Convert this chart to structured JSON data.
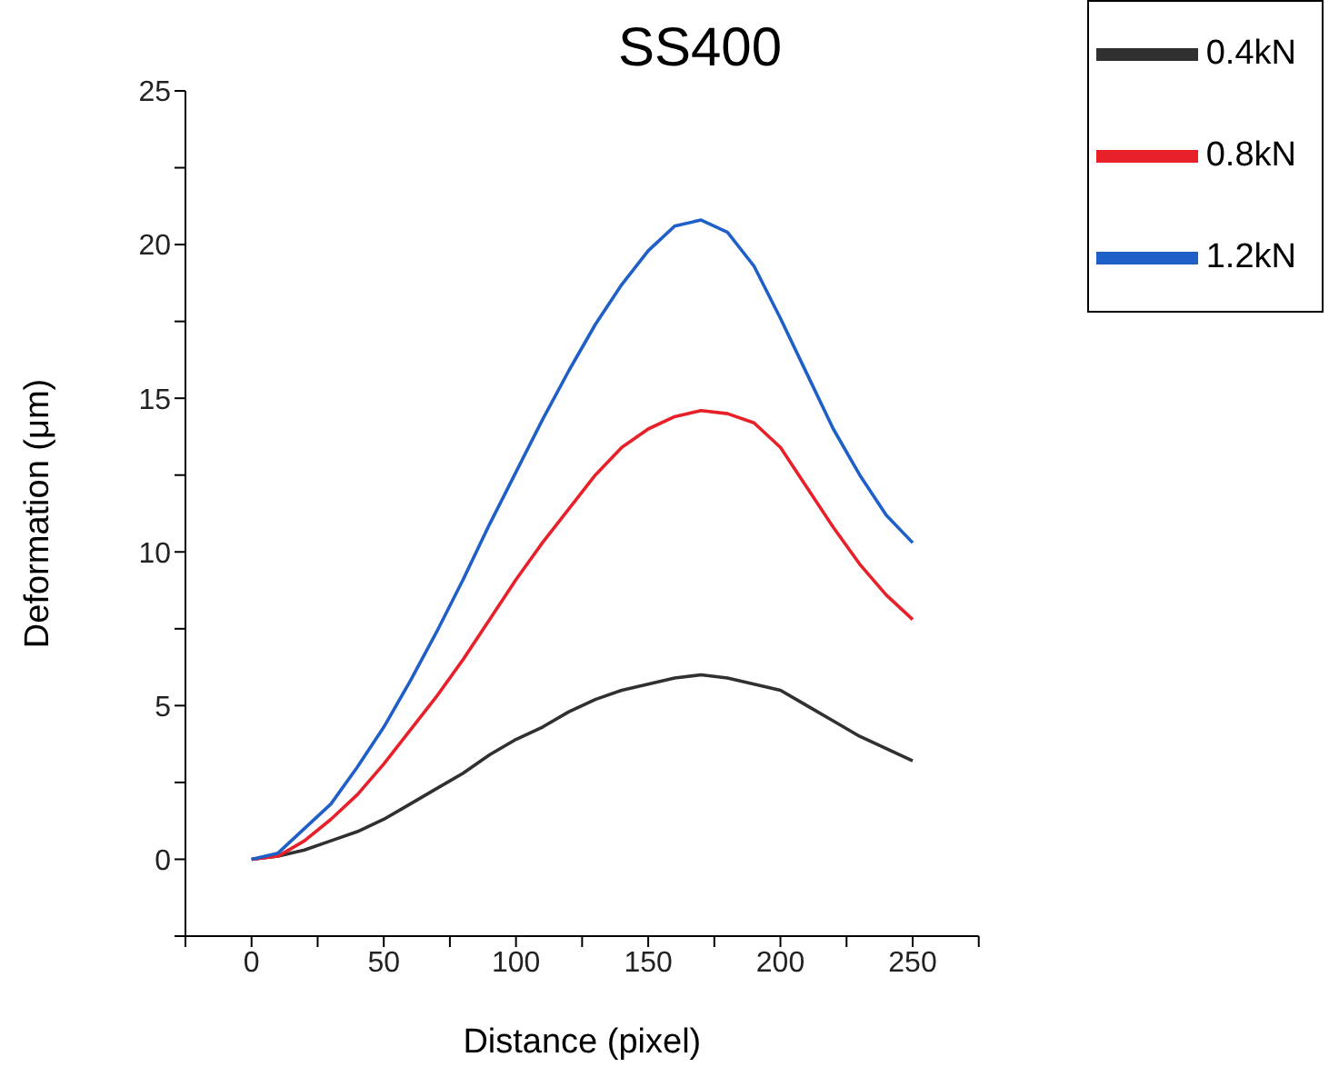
{
  "chart_data": {
    "type": "line",
    "title": "SS400",
    "xlabel": "Distance (pixel)",
    "ylabel": "Deformation (μm)",
    "x": [
      0,
      10,
      20,
      30,
      40,
      50,
      60,
      70,
      80,
      90,
      100,
      110,
      120,
      130,
      140,
      150,
      160,
      170,
      180,
      190,
      200,
      210,
      220,
      230,
      240,
      250
    ],
    "series": [
      {
        "name": "0.4kN",
        "color": "#303030",
        "values": [
          0,
          0.1,
          0.3,
          0.6,
          0.9,
          1.3,
          1.8,
          2.3,
          2.8,
          3.4,
          3.9,
          4.3,
          4.8,
          5.2,
          5.5,
          5.7,
          5.9,
          6,
          5.9,
          5.7,
          5.5,
          5.0,
          4.5,
          4.0,
          3.6,
          3.2
        ]
      },
      {
        "name": "0.8kN",
        "color": "#e8202a",
        "values": [
          0,
          0.1,
          0.6,
          1.3,
          2.1,
          3.1,
          4.2,
          5.3,
          6.5,
          7.8,
          9.1,
          10.3,
          11.4,
          12.5,
          13.4,
          14,
          14.4,
          14.6,
          14.5,
          14.2,
          13.4,
          12.1,
          10.8,
          9.6,
          8.6,
          7.8
        ]
      },
      {
        "name": "1.2kN",
        "color": "#1f5fc8",
        "values": [
          0,
          0.2,
          1,
          1.8,
          3,
          4.3,
          5.8,
          7.4,
          9.1,
          10.9,
          12.6,
          14.3,
          15.9,
          17.4,
          18.7,
          19.8,
          20.6,
          20.8,
          20.4,
          19.3,
          17.6,
          15.8,
          14,
          12.5,
          11.2,
          10.3
        ]
      }
    ],
    "xlim": [
      -25,
      275
    ],
    "xticks": [
      {
        "value": -25,
        "label": null
      },
      0,
      {
        "value": 25,
        "label": null
      },
      50,
      {
        "value": 75,
        "label": null
      },
      100,
      {
        "value": 125,
        "label": null
      },
      150,
      {
        "value": 175,
        "label": null
      },
      200,
      {
        "value": 225,
        "label": null
      },
      250,
      {
        "value": 275,
        "label": null
      }
    ],
    "ylim": [
      -2.5,
      25
    ],
    "yticks": [
      {
        "value": -2.5,
        "label": null
      },
      0,
      {
        "value": 2.5,
        "label": null
      },
      5,
      {
        "value": 7.5,
        "label": null
      },
      10,
      {
        "value": 12.5,
        "label": null
      },
      15,
      {
        "value": 17.5,
        "label": null
      },
      20,
      {
        "value": 22.5,
        "label": null
      },
      25
    ],
    "grid": false,
    "legend": "top right",
    "marker": "none",
    "line_style": "solid"
  }
}
